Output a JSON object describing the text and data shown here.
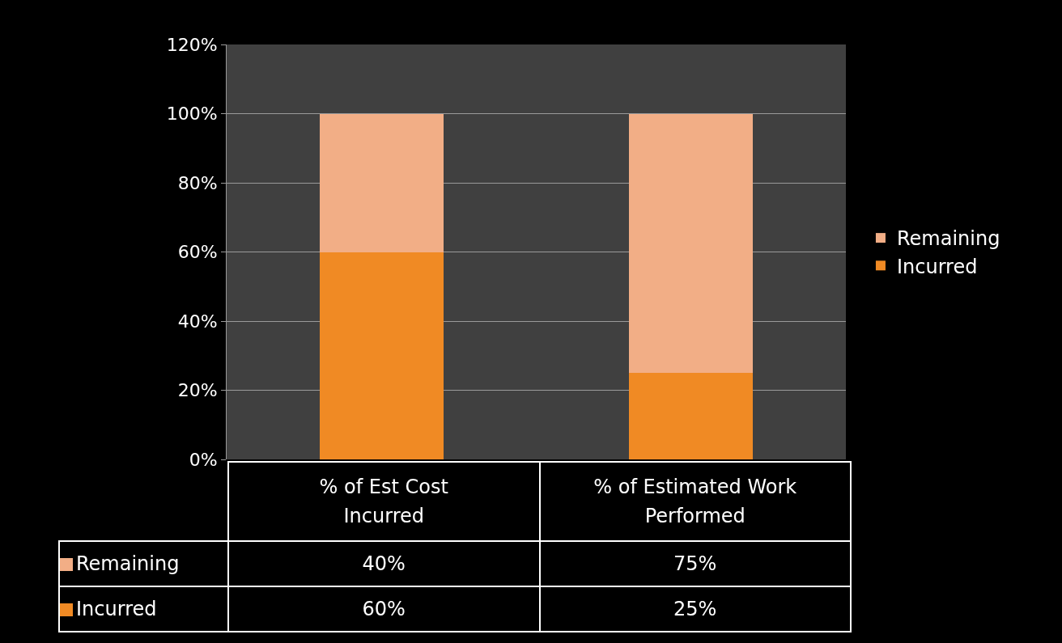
{
  "chart_data": {
    "type": "bar",
    "stacked": true,
    "categories": [
      "% of Est Cost Incurred",
      "% of Estimated Work Performed"
    ],
    "series": [
      {
        "name": "Incurred",
        "color": "#f08a24",
        "values": [
          60,
          25
        ],
        "value_labels": [
          "60%",
          "25%"
        ]
      },
      {
        "name": "Remaining",
        "color": "#f2ae86",
        "values": [
          40,
          75
        ],
        "value_labels": [
          "40%",
          "75%"
        ]
      }
    ],
    "ylim": [
      0,
      120
    ],
    "yticks": [
      {
        "value": 0,
        "label": "0%"
      },
      {
        "value": 20,
        "label": "20%"
      },
      {
        "value": 40,
        "label": "40%"
      },
      {
        "value": 60,
        "label": "60%"
      },
      {
        "value": 80,
        "label": "80%"
      },
      {
        "value": 100,
        "label": "100%"
      },
      {
        "value": 120,
        "label": "120%"
      }
    ],
    "grid": "y",
    "legend": "right"
  }
}
